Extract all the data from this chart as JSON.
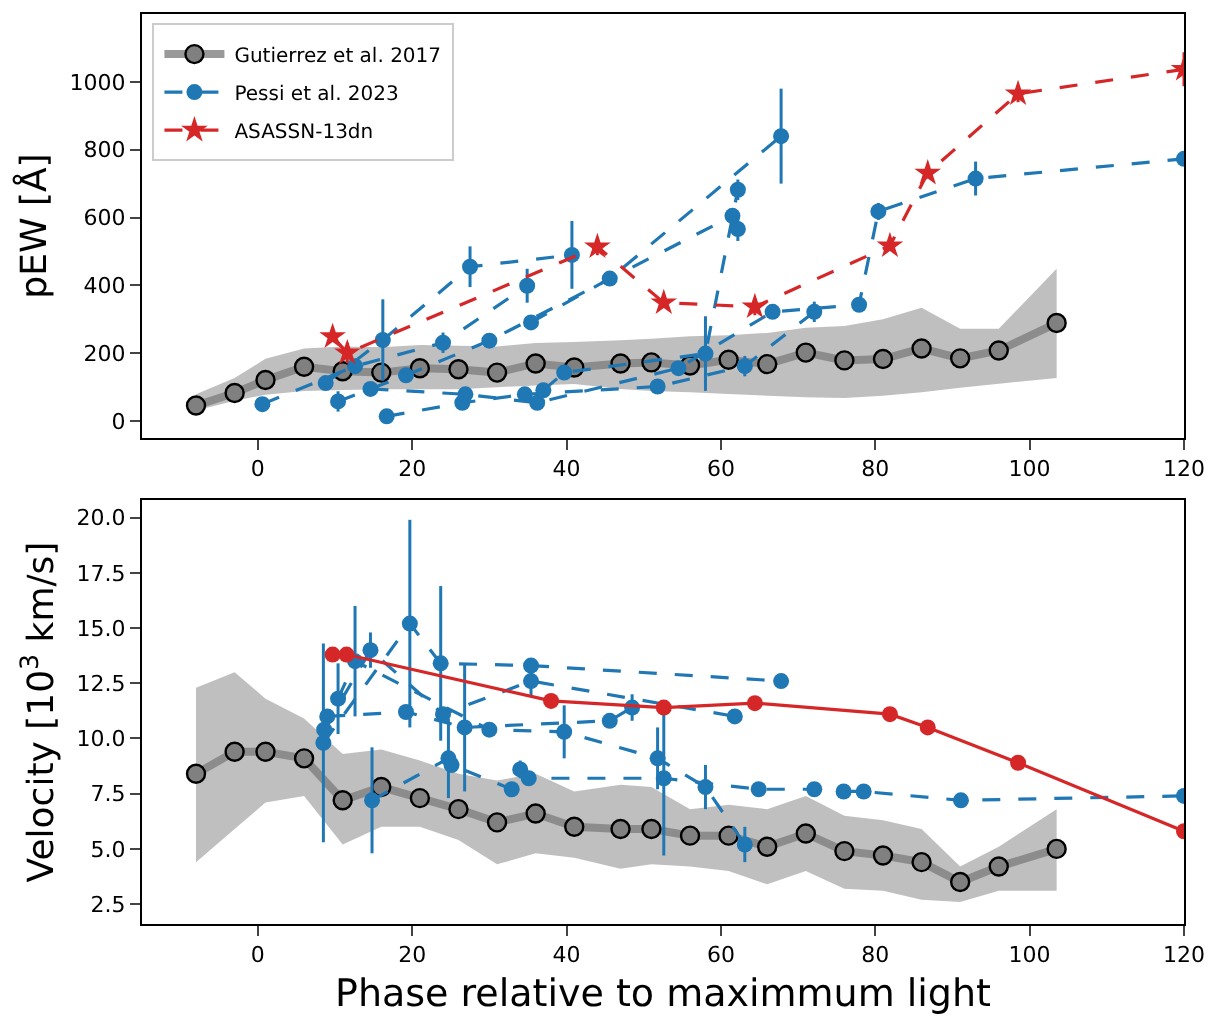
{
  "chart_data": [
    {
      "type": "line",
      "ylabel": "pEW [Å]",
      "xlim": [
        -15,
        120
      ],
      "xticks": [
        0,
        20,
        40,
        60,
        80,
        100,
        120
      ],
      "ylim": [
        -50,
        1200
      ],
      "yticks": [
        0,
        200,
        400,
        600,
        800,
        1000
      ],
      "legend": "top left",
      "series": [
        {
          "name": "Gutierrez et al. 2017",
          "color": "#808080",
          "marker": "circle",
          "line_style": "solid",
          "x": [
            -8,
            -3,
            1,
            6,
            11,
            16,
            21,
            26,
            31,
            36,
            41,
            47,
            51,
            56,
            61,
            66,
            71,
            76,
            81,
            86,
            91,
            96,
            103.5
          ],
          "values": [
            46,
            83,
            121,
            160,
            147,
            143,
            156,
            153,
            143,
            170,
            158,
            170,
            173,
            164,
            181,
            168,
            202,
            179,
            183,
            214,
            185,
            208,
            289
          ],
          "lower": [
            31,
            60,
            78,
            89,
            92,
            94,
            94,
            94,
            100,
            105,
            109,
            95,
            89,
            85,
            80,
            75,
            70,
            68,
            75,
            85,
            98,
            110,
            127
          ],
          "upper": [
            79,
            127,
            184,
            214,
            220,
            218,
            224,
            222,
            220,
            230,
            233,
            238,
            243,
            250,
            253,
            260,
            275,
            280,
            300,
            334,
            272,
            272,
            449
          ]
        },
        {
          "name": "Pessi et al. 2023",
          "color": "#1f77b4",
          "marker": "circle",
          "line_style": "dashed",
          "x": [
            0.6,
            12.6,
            24.0,
            34.9
          ],
          "values": [
            50,
            162,
            231,
            399
          ],
          "errors": [
            null,
            null,
            30,
            50
          ]
        },
        {
          "color": "#1f77b4",
          "marker": "circle",
          "line_style": "dashed",
          "x": [
            8.8,
            16.2,
            27.5,
            40.7
          ],
          "values": [
            112,
            239,
            455,
            490
          ],
          "errors": [
            null,
            120,
            60,
            100
          ]
        },
        {
          "color": "#1f77b4",
          "marker": "circle",
          "line_style": "dashed",
          "x": [
            10.4,
            19.2,
            30.0,
            61.5,
            62.2
          ],
          "values": [
            58,
            135,
            237,
            605,
            566
          ],
          "errors": [
            30,
            null,
            null,
            null,
            35
          ]
        },
        {
          "color": "#1f77b4",
          "marker": "circle",
          "line_style": "dashed",
          "x": [
            16.7,
            26.5,
            34.6,
            51.8,
            63.1,
            72.1
          ],
          "values": [
            14,
            54,
            79,
            102,
            162,
            322
          ],
          "errors": [
            null,
            null,
            null,
            null,
            30,
            30
          ]
        },
        {
          "color": "#1f77b4",
          "marker": "circle",
          "line_style": "dashed",
          "x": [
            14.6,
            26.9,
            36.2,
            54.5,
            66.7,
            77.9,
            80.4,
            93.0,
            120
          ],
          "values": [
            95,
            79,
            54,
            156,
            322,
            343,
            618,
            715,
            773
          ],
          "errors": [
            null,
            null,
            null,
            null,
            null,
            null,
            25,
            50,
            null
          ]
        },
        {
          "color": "#1f77b4",
          "marker": "circle",
          "line_style": "dashed",
          "x": [
            35.4,
            45.6,
            67.8
          ],
          "values": [
            291,
            420,
            840
          ],
          "errors": [
            null,
            null,
            140
          ]
        },
        {
          "color": "#1f77b4",
          "marker": "circle",
          "line_style": "dashed",
          "x": [
            37.0,
            39.7,
            58.0,
            62.2
          ],
          "values": [
            91,
            143,
            199,
            682
          ],
          "errors": [
            null,
            null,
            110,
            30
          ]
        },
        {
          "name": "ASASSN-13dn",
          "color": "#d62728",
          "marker": "star",
          "line_style": "dashed",
          "x": [
            9.7,
            11.6,
            44.0,
            52.6,
            64.4,
            81.9,
            86.8,
            98.5,
            120
          ],
          "values": [
            249,
            201,
            514,
            349,
            337,
            517,
            731,
            965,
            1037
          ],
          "errors": [
            null,
            30,
            25,
            null,
            25,
            null,
            null,
            25,
            50
          ]
        }
      ]
    },
    {
      "type": "line",
      "xlabel": "Phase relative to maximmum light",
      "ylabel": "Velocity [10$^{3}$ km/s]",
      "xlim": [
        -15,
        120
      ],
      "xticks": [
        0,
        20,
        40,
        60,
        80,
        100,
        120
      ],
      "ylim": [
        1.6,
        20.8
      ],
      "yticks": [
        {
          "value": 2.5,
          "label": "2.5"
        },
        {
          "value": 5,
          "label": "5.0"
        },
        {
          "value": 7.5,
          "label": "7.5"
        },
        {
          "value": 10,
          "label": "10.0"
        },
        {
          "value": 12.5,
          "label": "12.5"
        },
        {
          "value": 15,
          "label": "15.0"
        },
        {
          "value": 17.5,
          "label": "17.5"
        },
        {
          "value": 20,
          "label": "20.0"
        }
      ],
      "series": [
        {
          "color": "#808080",
          "marker": "circle",
          "line_style": "solid",
          "x": [
            -8,
            -3,
            1,
            6,
            11,
            16,
            21,
            26,
            31,
            36,
            41,
            47,
            51,
            56,
            61,
            66,
            71,
            76,
            81,
            86,
            91,
            96,
            103.5
          ],
          "values": [
            8.4,
            9.4,
            9.4,
            9.1,
            7.2,
            7.8,
            7.3,
            6.8,
            6.2,
            6.6,
            6.0,
            5.9,
            5.9,
            5.6,
            5.6,
            5.1,
            5.7,
            4.9,
            4.7,
            4.4,
            3.5,
            4.2,
            5.0
          ],
          "lower": [
            4.4,
            5.9,
            7.1,
            7.4,
            5.2,
            6.0,
            6.0,
            5.4,
            4.3,
            4.8,
            4.6,
            4.1,
            4.3,
            4.2,
            4.0,
            3.4,
            4.0,
            3.2,
            3.1,
            2.7,
            2.6,
            3.1,
            3.1
          ],
          "upper": [
            12.3,
            13.0,
            11.8,
            10.9,
            9.3,
            9.5,
            9.0,
            8.4,
            8.1,
            8.4,
            7.6,
            7.9,
            7.8,
            6.8,
            7.0,
            6.8,
            7.4,
            6.5,
            6.3,
            5.9,
            4.2,
            5.1,
            6.8
          ]
        },
        {
          "color": "#1f77b4",
          "marker": "circle",
          "line_style": "dashed",
          "x": [
            8.5,
            19.7,
            23.7,
            35.4,
            67.8
          ],
          "values": [
            9.8,
            15.2,
            13.4,
            13.3,
            12.6
          ],
          "errors": [
            4.5,
            4.7,
            3.5,
            null,
            null
          ]
        },
        {
          "color": "#1f77b4",
          "marker": "circle",
          "line_style": "dashed",
          "x": [
            8.6,
            14.6,
            24.0,
            35.4,
            61.8
          ],
          "values": [
            10.4,
            14.0,
            11.1,
            12.6,
            11.0
          ],
          "errors": [
            null,
            0.8,
            null,
            0.7,
            null
          ]
        },
        {
          "color": "#1f77b4",
          "marker": "circle",
          "line_style": "dashed",
          "x": [
            9.0,
            19.2,
            26.8,
            45.6,
            48.5
          ],
          "values": [
            11.0,
            11.2,
            10.5,
            10.8,
            11.4
          ],
          "errors": [
            null,
            null,
            2.9,
            null,
            0.6
          ]
        },
        {
          "color": "#1f77b4",
          "marker": "circle",
          "line_style": "dashed",
          "x": [
            10.4,
            12.6,
            30.0,
            39.7,
            51.8,
            58.0,
            63.1
          ],
          "values": [
            11.8,
            13.5,
            10.4,
            10.3,
            9.1,
            7.8,
            5.2
          ],
          "errors": [
            1.6,
            2.5,
            null,
            1.2,
            1.4,
            1.0,
            0.8
          ]
        },
        {
          "color": "#1f77b4",
          "marker": "circle",
          "line_style": "dashed",
          "x": [
            14.8,
            24.7,
            25.1,
            32.9,
            34.0,
            35.1,
            52.6,
            64.9,
            72.1,
            75.9,
            78.5,
            91.1,
            120
          ],
          "values": [
            7.2,
            9.1,
            8.8,
            7.7,
            8.6,
            8.2,
            8.2,
            7.7,
            7.7,
            7.6,
            7.6,
            7.2,
            7.4
          ],
          "errors": [
            2.4,
            1.8,
            null,
            null,
            0.4,
            null,
            3.5,
            null,
            null,
            null,
            null,
            null,
            null
          ]
        },
        {
          "color": "#d62728",
          "marker": "circle",
          "line_style": "solid",
          "x": [
            9.7,
            11.5,
            38.0,
            52.6,
            64.4,
            81.9,
            86.8,
            98.5,
            120
          ],
          "values": [
            13.8,
            13.8,
            11.7,
            11.4,
            11.6,
            11.1,
            10.5,
            8.9,
            5.8
          ]
        }
      ]
    }
  ]
}
